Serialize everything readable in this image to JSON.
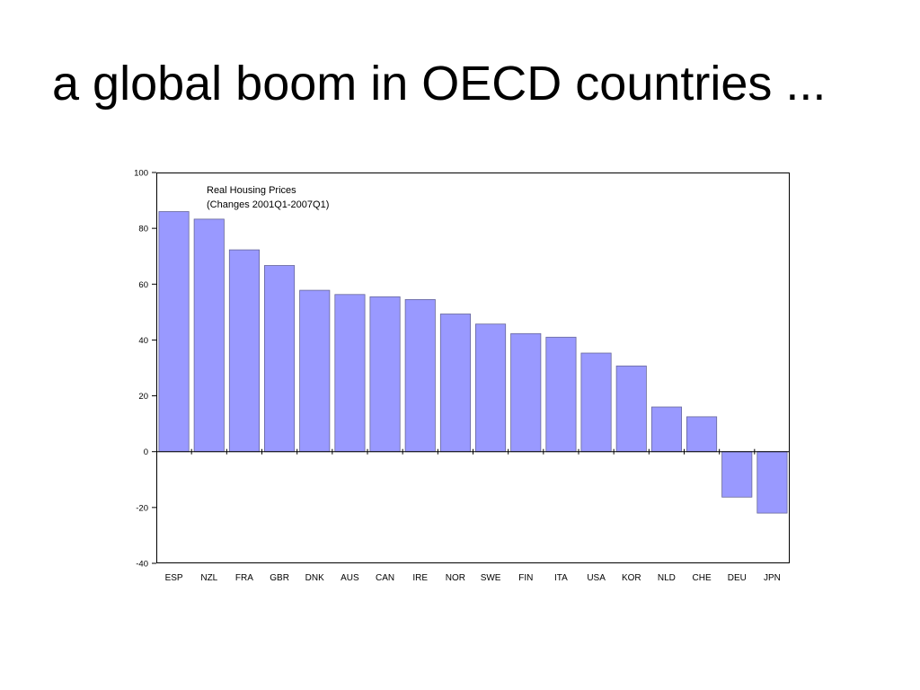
{
  "slide": {
    "title": "a global boom in OECD countries ..."
  },
  "chart_data": {
    "type": "bar",
    "annotation": [
      "Real Housing Prices",
      "(Changes 2001Q1-2007Q1)"
    ],
    "categories": [
      "ESP",
      "NZL",
      "FRA",
      "GBR",
      "DNK",
      "AUS",
      "CAN",
      "IRE",
      "NOR",
      "SWE",
      "FIN",
      "ITA",
      "USA",
      "KOR",
      "NLD",
      "CHE",
      "DEU",
      "JPN"
    ],
    "values": [
      86,
      83.3,
      72.3,
      66.7,
      57.8,
      56.3,
      55.5,
      54.5,
      49.3,
      45.7,
      42.3,
      41,
      35.3,
      30.7,
      16,
      12.5,
      -16.3,
      -22
    ],
    "ylim": [
      -40,
      100
    ],
    "yticks": [
      100,
      80,
      60,
      40,
      20,
      0,
      -20,
      -40
    ],
    "bar_color": "#9999ff",
    "xlabel": "",
    "ylabel": "",
    "grid": false,
    "legend": "none"
  }
}
